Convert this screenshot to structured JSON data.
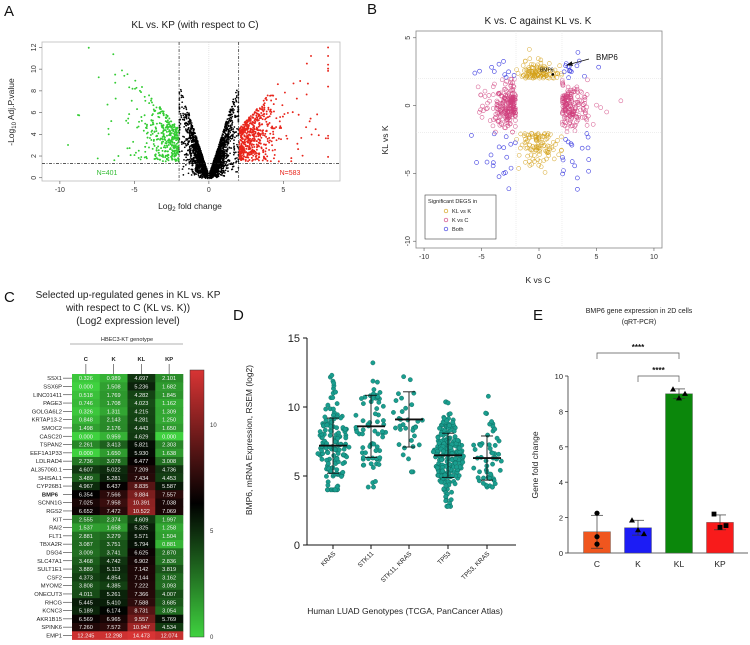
{
  "panels": {
    "a": "A",
    "b": "B",
    "c": "C",
    "d": "D",
    "e": "E"
  },
  "chart_data": [
    {
      "id": "A",
      "type": "scatter",
      "title": "KL vs. KP (with respect to C)",
      "xlabel": {
        "pre": "Log",
        "sub": "2",
        "post": " fold change"
      },
      "ylabel": {
        "pre": "-Log",
        "sub": "10",
        "post": " Adj.P.value"
      },
      "xlim": [
        -11.2,
        8.8
      ],
      "ylim": [
        -0.3,
        12.5
      ],
      "xticks": [
        -10,
        -5,
        0,
        5
      ],
      "yticks": [
        0,
        2,
        4,
        6,
        8,
        10,
        12
      ],
      "fc_threshold": 2,
      "p_threshold": 1.3,
      "groups": [
        {
          "name": "not significant",
          "n": 2600,
          "color": "#000000"
        },
        {
          "name": "down",
          "n": 401,
          "label": "N=401",
          "color": "#33cc33"
        },
        {
          "name": "up",
          "n": 583,
          "label": "N=583",
          "color": "#e8251b"
        }
      ]
    },
    {
      "id": "B",
      "type": "scatter",
      "title": "K vs. C against KL vs. K",
      "xlabel": "K vs C",
      "ylabel": "KL vs K",
      "xlim": [
        -10.7,
        10.7
      ],
      "ylim": [
        -10.5,
        5.5
      ],
      "xticks": [
        -10,
        -5,
        0,
        5,
        10
      ],
      "yticks": [
        5,
        0,
        -5,
        -10
      ],
      "threshold": 2,
      "legend": {
        "title": "Significant DEGS in",
        "position": "bottom-left"
      },
      "series": [
        {
          "name": "KL vs K",
          "n": 220,
          "color": "#d4a017"
        },
        {
          "name": "K vs C",
          "n": 420,
          "color": "#d0417e"
        },
        {
          "name": "Both",
          "n": 60,
          "color": "#3a3ae0"
        }
      ],
      "highlight": {
        "label": "BMP6",
        "callout": "BMP6",
        "x": 1.2,
        "y": 2.3
      }
    },
    {
      "id": "C",
      "type": "heatmap",
      "title": [
        "Selected up-regulated genes in KL vs. KP",
        "with respect to C (KL vs. K))",
        "(Log2 expression level)"
      ],
      "group_label": "HBEC3-KT genotype",
      "columns": [
        "C",
        "K",
        "KL",
        "KP"
      ],
      "highlight_gene": "BMP6",
      "scale": {
        "min": 0,
        "max": 12.6,
        "ticks": [
          0,
          5,
          10
        ],
        "low": "#3fd23f",
        "mid": "#000000",
        "high": "#d83434"
      },
      "rows": [
        {
          "gene": "SSX1",
          "values": [
            "0.326",
            "0.989",
            "4.697",
            "2.101"
          ]
        },
        {
          "gene": "SSX6P",
          "values": [
            "0.000",
            "1.508",
            "5.236",
            "1.682"
          ]
        },
        {
          "gene": "LINC01411",
          "values": [
            "0.518",
            "1.769",
            "4.282",
            "1.845"
          ]
        },
        {
          "gene": "PAGE3",
          "values": [
            "0.746",
            "1.708",
            "4.023",
            "1.162"
          ]
        },
        {
          "gene": "GOLGA6L2",
          "values": [
            "0.326",
            "1.311",
            "4.215",
            "1.309"
          ]
        },
        {
          "gene": "KRTAP13-2",
          "values": [
            "0.848",
            "2.143",
            "4.281",
            "1.250"
          ]
        },
        {
          "gene": "SMOC2",
          "values": [
            "1.498",
            "2.176",
            "4.443",
            "1.650"
          ]
        },
        {
          "gene": "CASC20",
          "values": [
            "0.000",
            "0.959",
            "4.629",
            "0.000"
          ]
        },
        {
          "gene": "TSPAN2",
          "values": [
            "2.261",
            "3.413",
            "5.821",
            "2.303"
          ]
        },
        {
          "gene": "EEF1A1P33",
          "values": [
            "0.000",
            "1.650",
            "5.930",
            "1.638"
          ]
        },
        {
          "gene": "LDLRAD4",
          "values": [
            "2.736",
            "3.078",
            "6.477",
            "3.008"
          ]
        },
        {
          "gene": "AL357060.1",
          "values": [
            "4.607",
            "5.022",
            "7.209",
            "4.736"
          ]
        },
        {
          "gene": "SHISAL1",
          "values": [
            "3.489",
            "5.281",
            "7.434",
            "4.453"
          ]
        },
        {
          "gene": "CYP26B1",
          "values": [
            "4.967",
            "6.437",
            "8.835",
            "5.587"
          ]
        },
        {
          "gene": "BMP6",
          "values": [
            "6.354",
            "7.566",
            "9.884",
            "7.557"
          ]
        },
        {
          "gene": "SCNN1G",
          "values": [
            "7.025",
            "7.958",
            "10.391",
            "7.038"
          ]
        },
        {
          "gene": "RGS2",
          "values": [
            "6.652",
            "7.472",
            "10.522",
            "7.069"
          ]
        },
        {
          "gene": "KIT",
          "values": [
            "2.555",
            "2.374",
            "4.609",
            "1.997"
          ]
        },
        {
          "gene": "RAI2",
          "values": [
            "1.537",
            "1.658",
            "5.325",
            "1.258"
          ]
        },
        {
          "gene": "FLT1",
          "values": [
            "2.881",
            "3.279",
            "5.571",
            "1.504"
          ]
        },
        {
          "gene": "TBXA2R",
          "values": [
            "3.087",
            "3.751",
            "5.794",
            "0.881"
          ]
        },
        {
          "gene": "DSG4",
          "values": [
            "3.009",
            "3.741",
            "6.625",
            "2.870"
          ]
        },
        {
          "gene": "SLC47A1",
          "values": [
            "3.468",
            "4.742",
            "6.902",
            "2.836"
          ]
        },
        {
          "gene": "SULT1E1",
          "values": [
            "3.889",
            "5.113",
            "7.142",
            "3.819"
          ]
        },
        {
          "gene": "CSF2",
          "values": [
            "4.373",
            "4.854",
            "7.144",
            "3.162"
          ]
        },
        {
          "gene": "MYOM2",
          "values": [
            "3.808",
            "4.385",
            "7.222",
            "3.093"
          ]
        },
        {
          "gene": "ONECUT3",
          "values": [
            "4.011",
            "5.261",
            "7.366",
            "4.007"
          ]
        },
        {
          "gene": "RHCG",
          "values": [
            "5.445",
            "5.410",
            "7.588",
            "3.685"
          ]
        },
        {
          "gene": "KCNC3",
          "values": [
            "5.189",
            "6.174",
            "8.731",
            "3.054"
          ]
        },
        {
          "gene": "AKR1B15",
          "values": [
            "6.569",
            "6.965",
            "9.557",
            "5.769"
          ]
        },
        {
          "gene": "SPINK6",
          "values": [
            "7.260",
            "7.572",
            "10.947",
            "4.534"
          ]
        },
        {
          "gene": "EMP1",
          "values": [
            "12.245",
            "12.298",
            "14.473",
            "12.074"
          ]
        }
      ]
    },
    {
      "id": "D",
      "type": "scatter",
      "subtype": "dot-plot mean ± SD",
      "ylabel": "BMP6, mRNA Expression, RSEM (log2)",
      "xlabel": "Human LUAD Genotypes (TCGA, PanCancer Atlas)",
      "ylim": [
        0,
        15
      ],
      "yticks": [
        0,
        5,
        10,
        15
      ],
      "color": "#1a9e8f",
      "groups": [
        {
          "name": "KRAS",
          "n": 150,
          "mean": 7.2,
          "sd": 2.0,
          "min": 4.0,
          "max": 12.3
        },
        {
          "name": "STK11",
          "n": 70,
          "mean": 8.6,
          "sd": 2.25,
          "min": 4.2,
          "max": 13.2
        },
        {
          "name": "STK11, KRAS",
          "n": 35,
          "mean": 9.1,
          "sd": 2.0,
          "min": 5.3,
          "max": 12.2
        },
        {
          "name": "TP53",
          "n": 220,
          "mean": 6.5,
          "sd": 1.6,
          "min": 2.8,
          "max": 13.2
        },
        {
          "name": "TP53, KRAS",
          "n": 55,
          "mean": 6.3,
          "sd": 1.6,
          "min": 4.2,
          "max": 12.2
        }
      ]
    },
    {
      "id": "E",
      "type": "bar",
      "title": [
        "BMP6 gene expression in 2D cells",
        "(qRT-PCR)"
      ],
      "ylabel": "Gene fold change",
      "ylim": [
        0,
        10
      ],
      "yticks": [
        0,
        2,
        4,
        6,
        8,
        10
      ],
      "categories": [
        "C",
        "K",
        "KL",
        "KP"
      ],
      "values": [
        1.2,
        1.43,
        9.0,
        1.73
      ],
      "errors": [
        0.93,
        0.42,
        0.27,
        0.42
      ],
      "colors": [
        "#f0561e",
        "#1c1cf5",
        "#0b870b",
        "#f81b1b"
      ],
      "markers": [
        "circle",
        "triangle",
        "triangle",
        "square"
      ],
      "points": [
        [
          2.25,
          0.92,
          0.5
        ],
        [
          1.85,
          1.3,
          1.08
        ],
        [
          9.25,
          8.75,
          9.0
        ],
        [
          2.2,
          1.45,
          1.55
        ]
      ],
      "significance": [
        {
          "from": "C",
          "to": "KL",
          "label": "****"
        },
        {
          "from": "K",
          "to": "KL",
          "label": "****"
        }
      ]
    }
  ]
}
